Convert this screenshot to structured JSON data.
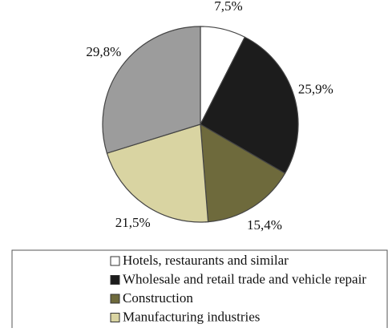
{
  "chart_data": {
    "type": "pie",
    "categories": [
      "Hotels, restaurants and similar",
      "Wholesale and retail trade and vehicle repair",
      "Construction",
      "Manufacturing industries",
      null
    ],
    "values": [
      7.5,
      25.9,
      15.4,
      21.5,
      29.8
    ],
    "value_labels": [
      "7,5%",
      "25,9%",
      "15,4%",
      "21,5%",
      "29,8%"
    ],
    "colors": [
      "#ffffff",
      "#1c1c1c",
      "#6e6a3c",
      "#d9d4a2",
      "#9c9c9c"
    ],
    "legend": "bottom"
  }
}
